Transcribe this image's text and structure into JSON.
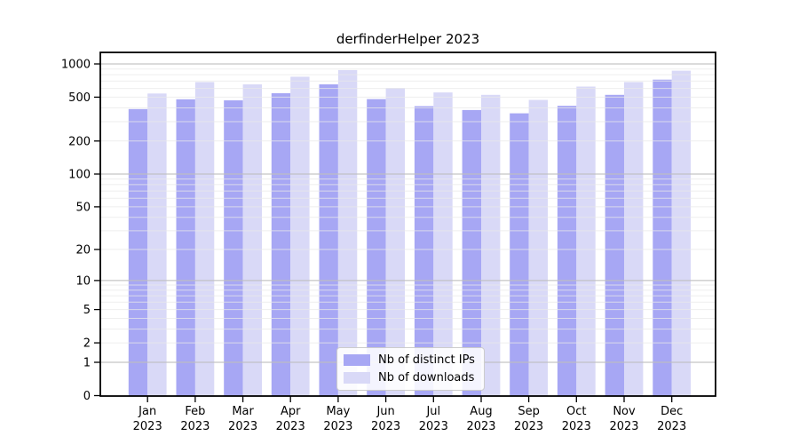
{
  "page": {
    "background": "#ffffff"
  },
  "chart_data": {
    "type": "bar",
    "title": "derfinderHelper 2023",
    "categories": [
      "Jan 2023",
      "Feb 2023",
      "Mar 2023",
      "Apr 2023",
      "May 2023",
      "Jun 2023",
      "Jul 2023",
      "Aug 2023",
      "Sep 2023",
      "Oct 2023",
      "Nov 2023",
      "Dec 2023"
    ],
    "month_labels": [
      "Jan",
      "Feb",
      "Mar",
      "Apr",
      "May",
      "Jun",
      "Jul",
      "Aug",
      "Sep",
      "Oct",
      "Nov",
      "Dec"
    ],
    "year_label": "2023",
    "series": [
      {
        "name": "Nb of distinct IPs",
        "color": "#a7a7f4",
        "values": [
          390,
          478,
          468,
          543,
          653,
          480,
          414,
          382,
          357,
          417,
          525,
          720
        ]
      },
      {
        "name": "Nb of downloads",
        "color": "#d9d9f7",
        "values": [
          540,
          685,
          653,
          766,
          880,
          605,
          552,
          525,
          472,
          624,
          685,
          868
        ]
      }
    ],
    "xlabel": "",
    "ylabel": "",
    "y_scale": "log1p",
    "ylim": [
      0,
      1000
    ],
    "yticks": [
      0,
      1,
      2,
      5,
      10,
      20,
      50,
      100,
      200,
      500,
      1000
    ],
    "grid": "on",
    "grid_major_ticks": [
      1,
      10,
      100,
      1000
    ],
    "grid_major_color": "#bfbfbf",
    "grid_minor_color": "#e9e9e9",
    "legend_position": "lower center",
    "axis_color": "#000000",
    "tick_label_color": "#000000"
  }
}
